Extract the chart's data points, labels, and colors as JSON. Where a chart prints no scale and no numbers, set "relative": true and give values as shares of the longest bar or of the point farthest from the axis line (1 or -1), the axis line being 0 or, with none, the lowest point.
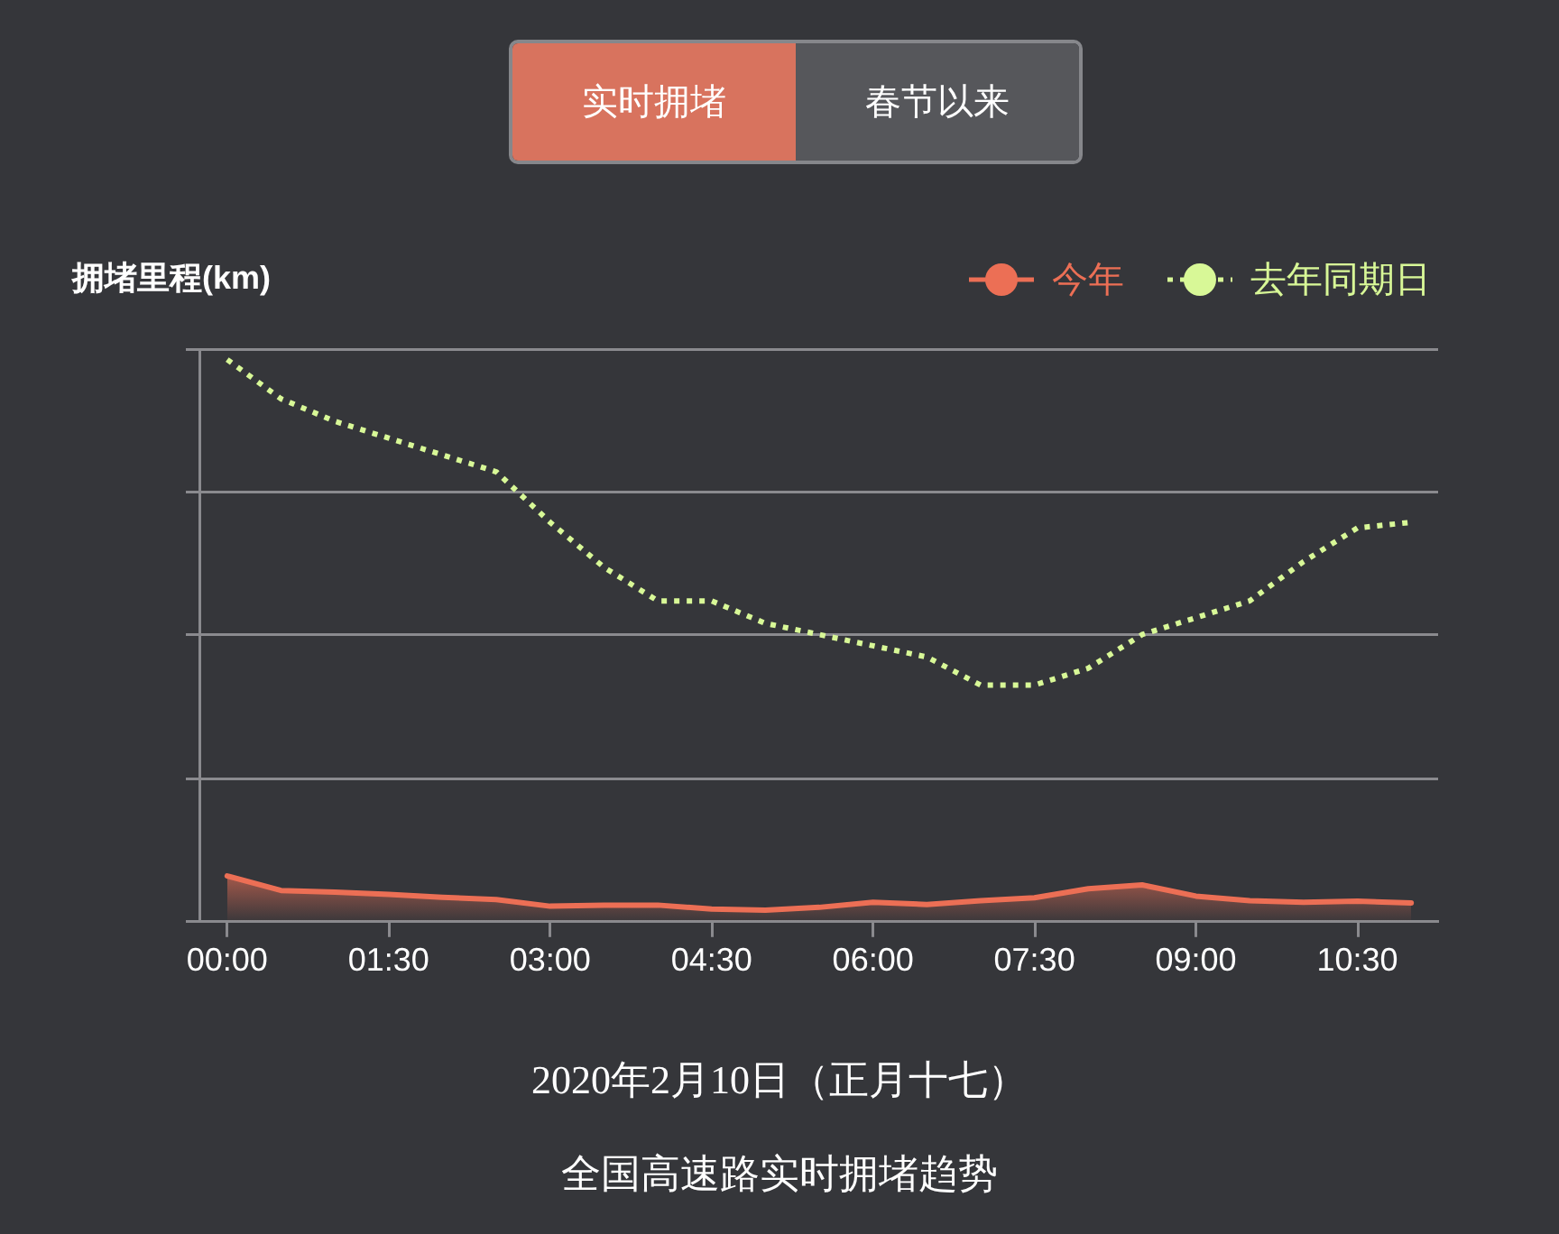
{
  "chart_data": {
    "type": "line",
    "title": "2020年2月10日（正月十七）",
    "subtitle": "全国高速路实时拥堵趋势",
    "ylabel": "拥堵里程(km)",
    "annotations": [
      "实时拥堵",
      "春节以来"
    ],
    "categories": [
      "00:00",
      null,
      null,
      "01:30",
      null,
      null,
      "03:00",
      null,
      null,
      "04:30",
      null,
      null,
      "06:00",
      null,
      null,
      "07:30",
      null,
      null,
      "09:00",
      null,
      null,
      "10:30",
      null
    ],
    "relative": true,
    "grid": "y",
    "legend": "top right",
    "series": [
      {
        "name": "今年",
        "type": "area",
        "color": "#ec6f55",
        "values": [
          0.08,
          0.054,
          0.051,
          0.047,
          0.042,
          0.038,
          0.026,
          0.028,
          0.028,
          0.021,
          0.019,
          0.024,
          0.033,
          0.029,
          0.036,
          0.041,
          0.057,
          0.064,
          0.044,
          0.036,
          0.033,
          0.035,
          0.032
        ]
      },
      {
        "name": "去年同期日",
        "type": "line",
        "line_style": "dotted",
        "color": "#d8f897",
        "values": [
          1.0,
          0.93,
          0.89,
          0.86,
          0.83,
          0.8,
          0.71,
          0.63,
          0.57,
          0.57,
          0.53,
          0.51,
          0.49,
          0.47,
          0.42,
          0.42,
          0.45,
          0.51,
          0.54,
          0.57,
          0.64,
          0.7,
          0.71
        ]
      }
    ]
  }
}
